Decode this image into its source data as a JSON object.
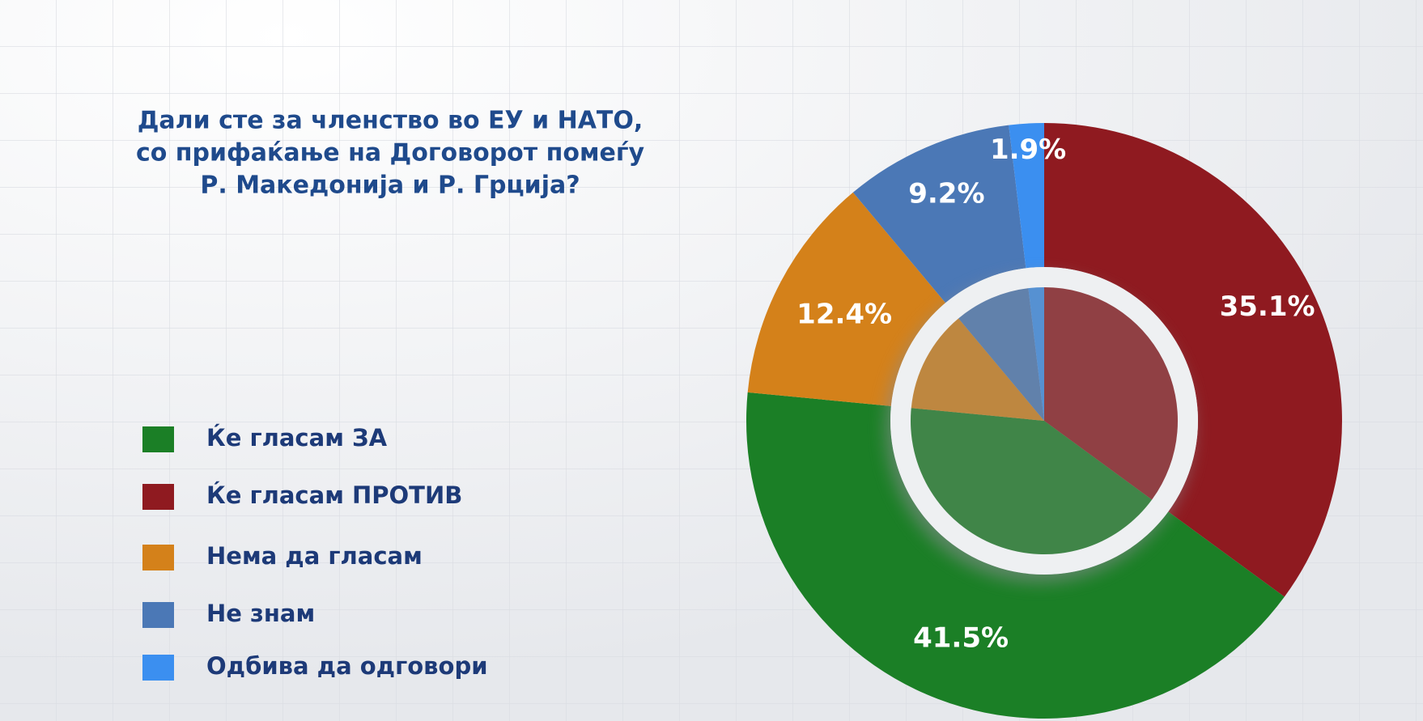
{
  "chart_data": {
    "type": "donut",
    "title": [
      "Дали сте за членство во ЕУ и НАТО,",
      "со прифаќање на Договорот помеѓу",
      "Р. Македонија и Р. Грција?"
    ],
    "categories": [
      "Ќе гласам ЗА",
      "Ќе гласам ПРОТИВ",
      "Нема да гласам",
      "Не знам",
      "Одбива да одговори"
    ],
    "values": [
      41.5,
      35.1,
      12.4,
      9.2,
      1.9
    ],
    "value_labels": [
      "41.5%",
      "35.1%",
      "12.4%",
      "9.2%",
      "1.9%"
    ],
    "colors": [
      "#1b7f26",
      "#8f1a20",
      "#d4811a",
      "#4b78b6",
      "#3b8ff0"
    ]
  }
}
